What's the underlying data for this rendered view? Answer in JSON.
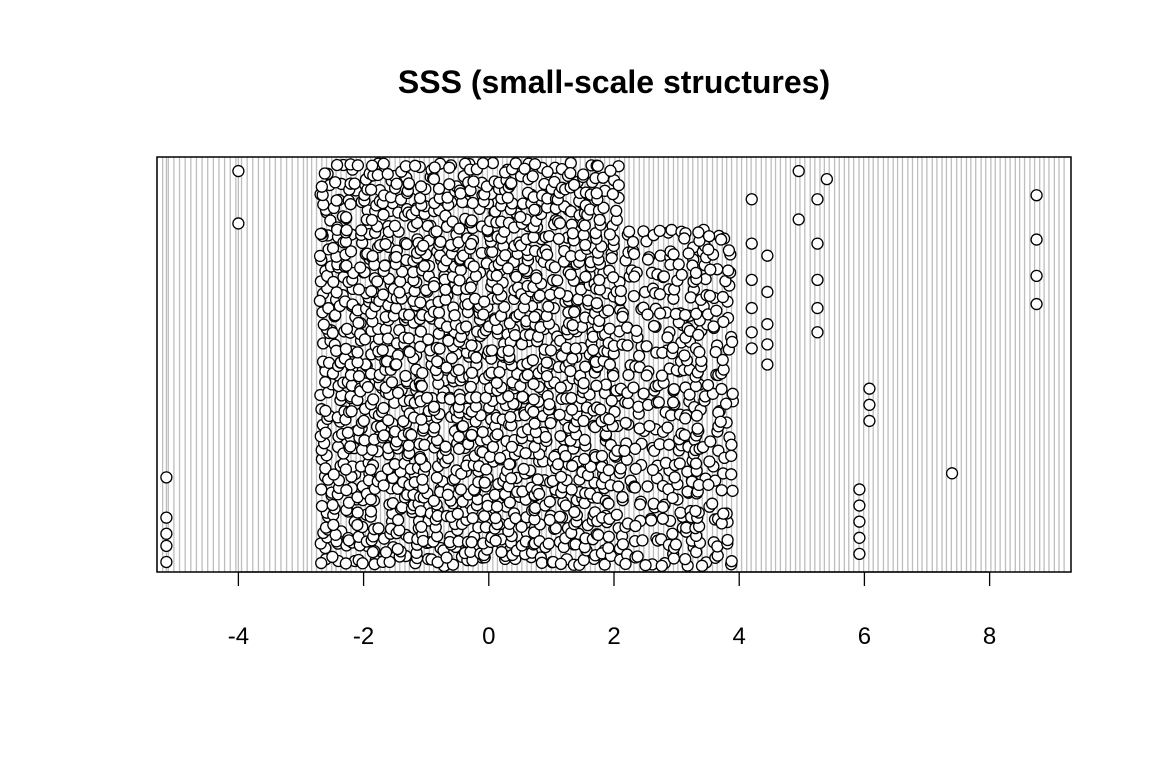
{
  "chart_data": {
    "type": "scatter",
    "title": "SSS (small-scale structures)",
    "xlabel": "",
    "ylabel": "",
    "xlim": [
      -5.3,
      9.3
    ],
    "xticks": [
      -4,
      -2,
      0,
      2,
      4,
      6,
      8
    ],
    "xtick_labels": [
      "-4",
      "-2",
      "0",
      "2",
      "4",
      "6",
      "8"
    ],
    "y_axis": "none",
    "marker": "open-circle",
    "colors": {
      "marker_fill": "#ffffff",
      "marker_stroke": "#000000",
      "rug": "#bebebe"
    },
    "notes": "stacked strip chart of values with a rug of vertical lines at many x positions; points stacked vertically at each x-value",
    "grid": false,
    "isolated_points": [
      {
        "x": -5.15,
        "count": 5,
        "ys": [
          0.22,
          0.12,
          0.08,
          0.05,
          0.01
        ]
      },
      {
        "x": -4.0,
        "count": 2,
        "ys": [
          0.98,
          0.85
        ]
      },
      {
        "x": 4.2,
        "count": 6,
        "ys": [
          0.91,
          0.8,
          0.71,
          0.64,
          0.58,
          0.54
        ]
      },
      {
        "x": 4.45,
        "count": 5,
        "ys": [
          0.77,
          0.68,
          0.6,
          0.55,
          0.5
        ]
      },
      {
        "x": 5.25,
        "count": 5,
        "ys": [
          0.91,
          0.8,
          0.71,
          0.64,
          0.58
        ]
      },
      {
        "x": 4.95,
        "count": 2,
        "ys": [
          0.98,
          0.86
        ]
      },
      {
        "x": 5.4,
        "count": 1,
        "ys": [
          0.96
        ]
      },
      {
        "x": 5.92,
        "count": 5,
        "ys": [
          0.19,
          0.15,
          0.11,
          0.07,
          0.03
        ]
      },
      {
        "x": 6.08,
        "count": 3,
        "ys": [
          0.44,
          0.4,
          0.36
        ]
      },
      {
        "x": 7.4,
        "count": 1,
        "ys": [
          0.23
        ]
      },
      {
        "x": 8.75,
        "count": 4,
        "ys": [
          0.92,
          0.81,
          0.72,
          0.65
        ]
      }
    ],
    "dense_columns": [
      {
        "x": -2.6,
        "count": 34
      },
      {
        "x": -2.4,
        "count": 30
      },
      {
        "x": -2.2,
        "count": 34
      },
      {
        "x": -2.0,
        "count": 34
      },
      {
        "x": -1.8,
        "count": 34
      },
      {
        "x": -1.6,
        "count": 34
      },
      {
        "x": -1.4,
        "count": 34
      },
      {
        "x": -1.2,
        "count": 34
      },
      {
        "x": -1.0,
        "count": 34
      },
      {
        "x": -0.8,
        "count": 34
      },
      {
        "x": -0.6,
        "count": 34
      },
      {
        "x": -0.4,
        "count": 34
      },
      {
        "x": -0.2,
        "count": 34
      },
      {
        "x": 0.0,
        "count": 34
      },
      {
        "x": 0.2,
        "count": 34
      },
      {
        "x": 0.4,
        "count": 34
      },
      {
        "x": 0.6,
        "count": 34
      },
      {
        "x": 0.8,
        "count": 34
      },
      {
        "x": 1.0,
        "count": 30
      },
      {
        "x": 1.2,
        "count": 30
      },
      {
        "x": 1.4,
        "count": 34
      },
      {
        "x": 1.6,
        "count": 34
      },
      {
        "x": 1.8,
        "count": 34
      },
      {
        "x": 2.0,
        "count": 28
      },
      {
        "x": 2.2,
        "count": 18
      },
      {
        "x": 2.4,
        "count": 18
      },
      {
        "x": 2.6,
        "count": 18
      },
      {
        "x": 2.8,
        "count": 18
      },
      {
        "x": 3.0,
        "count": 22
      },
      {
        "x": 3.2,
        "count": 22
      },
      {
        "x": 3.4,
        "count": 26
      },
      {
        "x": 3.6,
        "count": 18
      },
      {
        "x": 3.8,
        "count": 20
      }
    ]
  }
}
